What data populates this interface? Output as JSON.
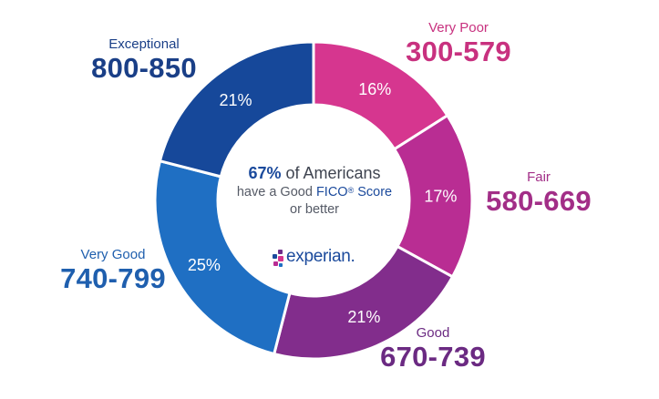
{
  "chart_data": {
    "type": "pie",
    "style": "donut",
    "start_angle_deg": 0,
    "slices": [
      {
        "name": "Very Poor",
        "range": "300-579",
        "value": 16,
        "label": "16%",
        "color": "#d6368f",
        "name_color": "#c8317f",
        "range_color": "#c8317f"
      },
      {
        "name": "Fair",
        "range": "580-669",
        "value": 17,
        "label": "17%",
        "color": "#b92d93",
        "name_color": "#a22e87",
        "range_color": "#a22e87"
      },
      {
        "name": "Good",
        "range": "670-739",
        "value": 21,
        "label": "21%",
        "color": "#822d8c",
        "name_color": "#6b2a82",
        "range_color": "#6b2a82"
      },
      {
        "name": "Very Good",
        "range": "740-799",
        "value": 25,
        "label": "25%",
        "color": "#1f6fc3",
        "name_color": "#1f5fae",
        "range_color": "#1f5fae"
      },
      {
        "name": "Exceptional",
        "range": "800-850",
        "value": 21,
        "label": "21%",
        "color": "#16489a",
        "name_color": "#1a3f87",
        "range_color": "#1a3f87"
      }
    ]
  },
  "center": {
    "highlight": "67%",
    "line1_rest": " of Americans",
    "line2_prefix": "have a Good ",
    "line2_fico": "FICO",
    "line2_reg": "®",
    "line2_suffix": " Score",
    "line3": "or better"
  },
  "logo": {
    "text": "experian."
  }
}
